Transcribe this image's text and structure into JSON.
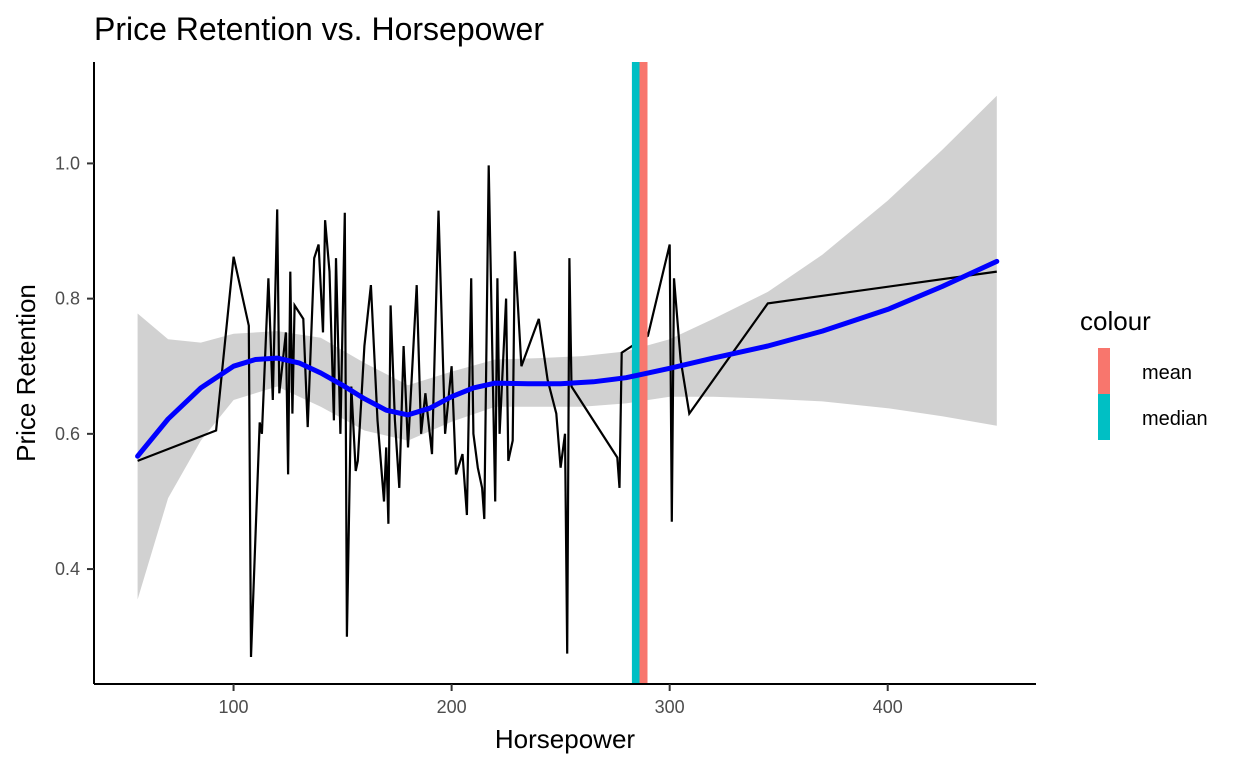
{
  "chart_data": {
    "type": "line",
    "title": "Price Retention vs. Horsepower",
    "xlabel": "Horsepower",
    "ylabel": "Price Retention",
    "xlim": [
      36,
      468
    ],
    "ylim": [
      0.23,
      1.15
    ],
    "x_ticks": [
      100,
      200,
      300,
      400
    ],
    "y_ticks": [
      0.4,
      0.6,
      0.8,
      1.0
    ],
    "x_tick_labels": [
      "100",
      "200",
      "300",
      "400"
    ],
    "y_tick_labels": [
      "0.4",
      "0.6",
      "0.8",
      "1.0"
    ],
    "grid": false,
    "legend": {
      "title": "colour",
      "position": "right",
      "entries": [
        {
          "label": "mean",
          "color": "#F8766D"
        },
        {
          "label": "median",
          "color": "#00BFC4"
        }
      ]
    },
    "raw_series": {
      "color": "#000000",
      "points": [
        [
          56,
          0.56
        ],
        [
          92,
          0.605
        ],
        [
          100,
          0.862
        ],
        [
          107,
          0.76
        ],
        [
          108,
          0.27
        ],
        [
          112,
          0.617
        ],
        [
          113,
          0.6
        ],
        [
          116,
          0.83
        ],
        [
          118,
          0.65
        ],
        [
          120,
          0.932
        ],
        [
          121,
          0.66
        ],
        [
          124,
          0.75
        ],
        [
          125,
          0.54
        ],
        [
          126,
          0.84
        ],
        [
          127,
          0.63
        ],
        [
          128,
          0.79
        ],
        [
          132,
          0.77
        ],
        [
          134,
          0.61
        ],
        [
          137,
          0.86
        ],
        [
          139,
          0.88
        ],
        [
          141,
          0.75
        ],
        [
          142,
          0.916
        ],
        [
          144,
          0.84
        ],
        [
          146,
          0.62
        ],
        [
          147,
          0.86
        ],
        [
          149,
          0.6
        ],
        [
          151,
          0.927
        ],
        [
          152,
          0.3
        ],
        [
          154,
          0.67
        ],
        [
          156,
          0.545
        ],
        [
          157,
          0.56
        ],
        [
          160,
          0.73
        ],
        [
          163,
          0.82
        ],
        [
          166,
          0.62
        ],
        [
          169,
          0.5
        ],
        [
          170,
          0.58
        ],
        [
          171,
          0.467
        ],
        [
          172,
          0.79
        ],
        [
          174,
          0.62
        ],
        [
          176,
          0.52
        ],
        [
          178,
          0.73
        ],
        [
          180,
          0.58
        ],
        [
          184,
          0.82
        ],
        [
          186,
          0.6
        ],
        [
          188,
          0.66
        ],
        [
          191,
          0.57
        ],
        [
          194,
          0.93
        ],
        [
          197,
          0.6
        ],
        [
          200,
          0.7
        ],
        [
          202,
          0.54
        ],
        [
          203,
          0.55
        ],
        [
          205,
          0.57
        ],
        [
          207,
          0.48
        ],
        [
          209,
          0.83
        ],
        [
          210,
          0.6
        ],
        [
          212,
          0.55
        ],
        [
          214,
          0.52
        ],
        [
          215,
          0.474
        ],
        [
          217,
          0.997
        ],
        [
          220,
          0.5
        ],
        [
          221,
          0.83
        ],
        [
          222,
          0.6
        ],
        [
          225,
          0.8
        ],
        [
          226,
          0.56
        ],
        [
          228,
          0.59
        ],
        [
          229,
          0.87
        ],
        [
          232,
          0.7
        ],
        [
          240,
          0.77
        ],
        [
          244,
          0.68
        ],
        [
          248,
          0.63
        ],
        [
          250,
          0.55
        ],
        [
          252,
          0.6
        ],
        [
          253,
          0.275
        ],
        [
          254,
          0.86
        ],
        [
          255,
          0.67
        ],
        [
          276,
          0.565
        ],
        [
          277,
          0.52
        ],
        [
          278,
          0.72
        ],
        [
          290,
          0.745
        ],
        [
          300,
          0.88
        ],
        [
          301,
          0.47
        ],
        [
          302,
          0.83
        ],
        [
          305,
          0.71
        ],
        [
          309,
          0.63
        ],
        [
          345,
          0.793
        ],
        [
          450,
          0.84
        ]
      ]
    },
    "smooth_series": {
      "color": "#0000FF",
      "points": [
        [
          56,
          0.567
        ],
        [
          70,
          0.622
        ],
        [
          85,
          0.668
        ],
        [
          100,
          0.7
        ],
        [
          110,
          0.71
        ],
        [
          120,
          0.712
        ],
        [
          130,
          0.705
        ],
        [
          140,
          0.69
        ],
        [
          150,
          0.672
        ],
        [
          160,
          0.652
        ],
        [
          170,
          0.635
        ],
        [
          180,
          0.628
        ],
        [
          190,
          0.638
        ],
        [
          200,
          0.655
        ],
        [
          210,
          0.668
        ],
        [
          220,
          0.675
        ],
        [
          235,
          0.674
        ],
        [
          250,
          0.674
        ],
        [
          265,
          0.677
        ],
        [
          280,
          0.683
        ],
        [
          300,
          0.697
        ],
        [
          320,
          0.712
        ],
        [
          345,
          0.73
        ],
        [
          370,
          0.752
        ],
        [
          400,
          0.784
        ],
        [
          425,
          0.818
        ],
        [
          450,
          0.855
        ]
      ]
    },
    "ci_band": {
      "color": "#BEBEBE",
      "points": [
        [
          56,
          0.355,
          0.778
        ],
        [
          70,
          0.505,
          0.74
        ],
        [
          85,
          0.59,
          0.735
        ],
        [
          100,
          0.65,
          0.748
        ],
        [
          120,
          0.67,
          0.752
        ],
        [
          140,
          0.64,
          0.742
        ],
        [
          160,
          0.605,
          0.705
        ],
        [
          180,
          0.59,
          0.672
        ],
        [
          200,
          0.618,
          0.692
        ],
        [
          220,
          0.64,
          0.71
        ],
        [
          240,
          0.64,
          0.712
        ],
        [
          260,
          0.64,
          0.715
        ],
        [
          280,
          0.645,
          0.722
        ],
        [
          300,
          0.655,
          0.74
        ],
        [
          320,
          0.655,
          0.77
        ],
        [
          345,
          0.652,
          0.81
        ],
        [
          370,
          0.648,
          0.865
        ],
        [
          400,
          0.638,
          0.945
        ],
        [
          425,
          0.626,
          1.02
        ],
        [
          450,
          0.612,
          1.1
        ]
      ]
    },
    "vlines": [
      {
        "name": "median",
        "x": 284.5,
        "color": "#00BFC4"
      },
      {
        "name": "mean",
        "x": 288,
        "color": "#F8766D"
      }
    ]
  }
}
